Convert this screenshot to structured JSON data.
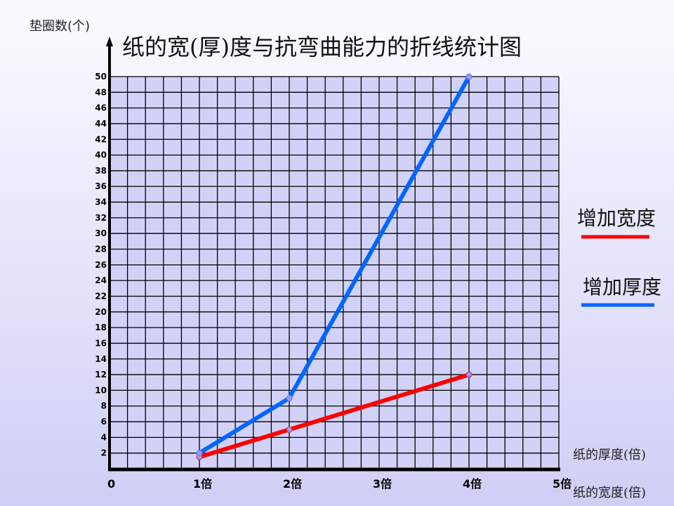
{
  "chart_data": {
    "type": "line",
    "title": "纸的宽(厚)度与抗弯曲能力的折线统计图",
    "ylabel": "垫圈数(个)",
    "xlabels": [
      "纸的厚度(倍)",
      "纸的宽度(倍)"
    ],
    "x_ticks": [
      "0",
      "1倍",
      "2倍",
      "3倍",
      "4倍",
      "5倍"
    ],
    "y_ticks": [
      2,
      4,
      6,
      8,
      10,
      12,
      14,
      16,
      18,
      20,
      22,
      24,
      26,
      28,
      30,
      32,
      34,
      36,
      38,
      40,
      42,
      44,
      46,
      48,
      50
    ],
    "xlim": [
      0,
      5
    ],
    "ylim": [
      0,
      50
    ],
    "grid": true,
    "legend_position": "right",
    "series": [
      {
        "name": "增加宽度",
        "color": "#ff0000",
        "x": [
          1,
          2,
          4
        ],
        "y": [
          1.5,
          5,
          12
        ]
      },
      {
        "name": "增加厚度",
        "color": "#0066ff",
        "x": [
          1,
          2,
          4
        ],
        "y": [
          2,
          9,
          50
        ]
      }
    ]
  }
}
